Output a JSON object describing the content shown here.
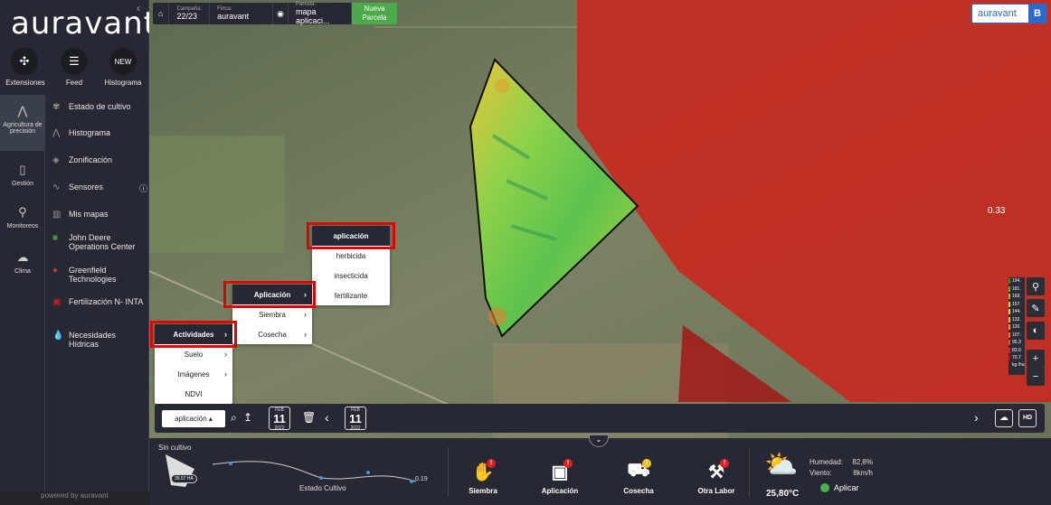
{
  "app": {
    "logo": "auravant",
    "powered": "powered by auravant"
  },
  "top_buttons": [
    {
      "icon": "puzzle-icon",
      "label": "Extensiones"
    },
    {
      "icon": "feed-icon",
      "label": "Feed"
    },
    {
      "icon": "new-badge",
      "badge": "NEW",
      "label": "Histograma"
    }
  ],
  "main_nav": [
    {
      "icon": "graph-icon",
      "label": "Agricultura de precisión",
      "active": true
    },
    {
      "icon": "tablet-icon",
      "label": "Gestión"
    },
    {
      "icon": "location-icon",
      "label": "Monitoreos"
    },
    {
      "icon": "cloud-icon",
      "label": "Clima"
    }
  ],
  "sub_nav": [
    {
      "icon": "sprout-icon",
      "label": "Estado de cultivo"
    },
    {
      "icon": "histogram-icon",
      "label": "Histograma"
    },
    {
      "icon": "layers-icon",
      "label": "Zonificación"
    },
    {
      "icon": "sensor-icon",
      "label": "Sensores",
      "info": "ⓘ"
    },
    {
      "icon": "map-icon",
      "label": "Mis mapas"
    },
    {
      "icon": "john-deere-logo",
      "label": "John Deere Operations Center"
    },
    {
      "icon": "greenfield-logo",
      "label": "Greenfield Technologies"
    },
    {
      "icon": "inta-logo",
      "label": "Fertilización N- INTA"
    },
    {
      "icon": "drop-icon",
      "label": "Necesidades Hídricas"
    }
  ],
  "topbar": {
    "campana_label": "Campaña:",
    "campana": "22/23",
    "finca_label": "Finca:",
    "finca": "auravant",
    "parcela_label": "Parcela:",
    "parcela": "mapa aplicaci...",
    "nueva": "Nueva Parcela"
  },
  "brand": {
    "name": "auravant",
    "letter": "B"
  },
  "menus": {
    "level1": [
      "Actividades",
      "Suelo",
      "Imágenes",
      "NDVI"
    ],
    "level2": [
      "Aplicación",
      "Siembra",
      "Cosecha"
    ],
    "level3": [
      "aplicación",
      "herbicida",
      "insecticida",
      "fertilizante"
    ]
  },
  "map": {
    "value_label": "0.33",
    "legend": [
      "194.",
      "181.",
      "169.",
      "157.",
      "144.",
      "132.",
      "120.",
      "107.",
      "95.3",
      "83.0",
      "70.7"
    ],
    "legend_colors": [
      "#1aa01a",
      "#3cb93c",
      "#7acd3c",
      "#bfe03c",
      "#e8e03c",
      "#f0c43c",
      "#f0a03c",
      "#e8783c",
      "#d8503c",
      "#c0283c",
      "#a0103c"
    ],
    "unit": "kg /ha"
  },
  "bottom_toolbar": {
    "layer_select": "aplicación ▴",
    "date1": {
      "month": "FEB",
      "day": "11",
      "year": "2022"
    },
    "date2": {
      "month": "FEB",
      "day": "11",
      "year": "2022"
    },
    "hd": "HD"
  },
  "panel": {
    "status": "Sin cultivo",
    "area": "35.57 HA",
    "curve_label": "Estado Cultivo",
    "curve_end": "0.19",
    "actions": [
      {
        "icon": "seed-icon",
        "label": "Siembra",
        "warn": "!"
      },
      {
        "icon": "sprayer-icon",
        "label": "Aplicación",
        "warn": "!"
      },
      {
        "icon": "harvester-icon",
        "label": "Cosecha",
        "warn": "!"
      },
      {
        "icon": "shovel-icon",
        "label": "Otra Labor",
        "warn": "!"
      }
    ],
    "weather": {
      "humidity_label": "Humedad:",
      "humidity": "82,8%",
      "wind_label": "Viento:",
      "wind": "8km/h",
      "temp": "25,80°C",
      "apply": "Aplicar"
    }
  }
}
